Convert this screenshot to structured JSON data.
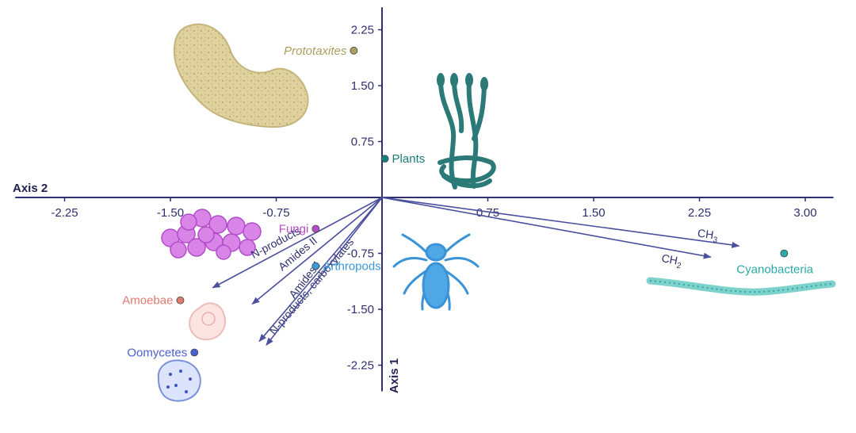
{
  "chart_data": {
    "type": "scatter",
    "subtype": "biplot",
    "title": "",
    "x_axis": {
      "label": "Axis 2",
      "range": [
        -2.6,
        3.2
      ],
      "ticks": [
        -2.25,
        -1.5,
        -0.75,
        0.75,
        1.5,
        2.25,
        3.0
      ],
      "tick_labels": [
        "-2.25",
        "-1.50",
        "-0.75",
        "0.75",
        "1.50",
        "2.25",
        "3.00"
      ]
    },
    "y_axis": {
      "label": "Axis 1",
      "range": [
        -2.6,
        2.55
      ],
      "ticks": [
        2.25,
        1.5,
        0.75,
        -0.75,
        -1.5,
        -2.25
      ],
      "tick_labels": [
        "2.25",
        "1.50",
        "0.75",
        "-0.75",
        "-1.50",
        "-2.25"
      ]
    },
    "grid": false,
    "points": [
      {
        "name": "Prototaxites",
        "x": -0.2,
        "y": 1.97,
        "color": "#a9a060",
        "italic": true
      },
      {
        "name": "Plants",
        "x": 0.02,
        "y": 0.52,
        "color": "#1c7d78"
      },
      {
        "name": "Fungi",
        "x": -0.47,
        "y": -0.42,
        "color": "#b84cc7"
      },
      {
        "name": "Arthropods",
        "x": -0.47,
        "y": -0.92,
        "color": "#3c9ad8"
      },
      {
        "name": "Amoebae",
        "x": -1.43,
        "y": -1.38,
        "color": "#e07a70"
      },
      {
        "name": "Oomycetes",
        "x": -1.33,
        "y": -2.08,
        "color": "#4a5fd0"
      },
      {
        "name": "Cyanobacteria",
        "x": 2.85,
        "y": -0.75,
        "color": "#2aaaa8"
      }
    ],
    "vectors": [
      {
        "label": "CH₃",
        "label_main": "CH",
        "label_sub": "3",
        "x": 2.53,
        "y": -0.65
      },
      {
        "label": "CH₂",
        "label_main": "CH",
        "label_sub": "2",
        "x": 2.33,
        "y": -0.8
      },
      {
        "label": "N-products",
        "x": -1.2,
        "y": -1.21
      },
      {
        "label": "Amides II",
        "x": -0.92,
        "y": -1.43
      },
      {
        "label": "N-products, carboxylates",
        "x": -0.87,
        "y": -1.93
      },
      {
        "label": "Amides I",
        "x": -0.82,
        "y": -1.98
      }
    ],
    "colors": {
      "axis": "#2e2f6e",
      "vector": "#4a4f9e"
    }
  }
}
